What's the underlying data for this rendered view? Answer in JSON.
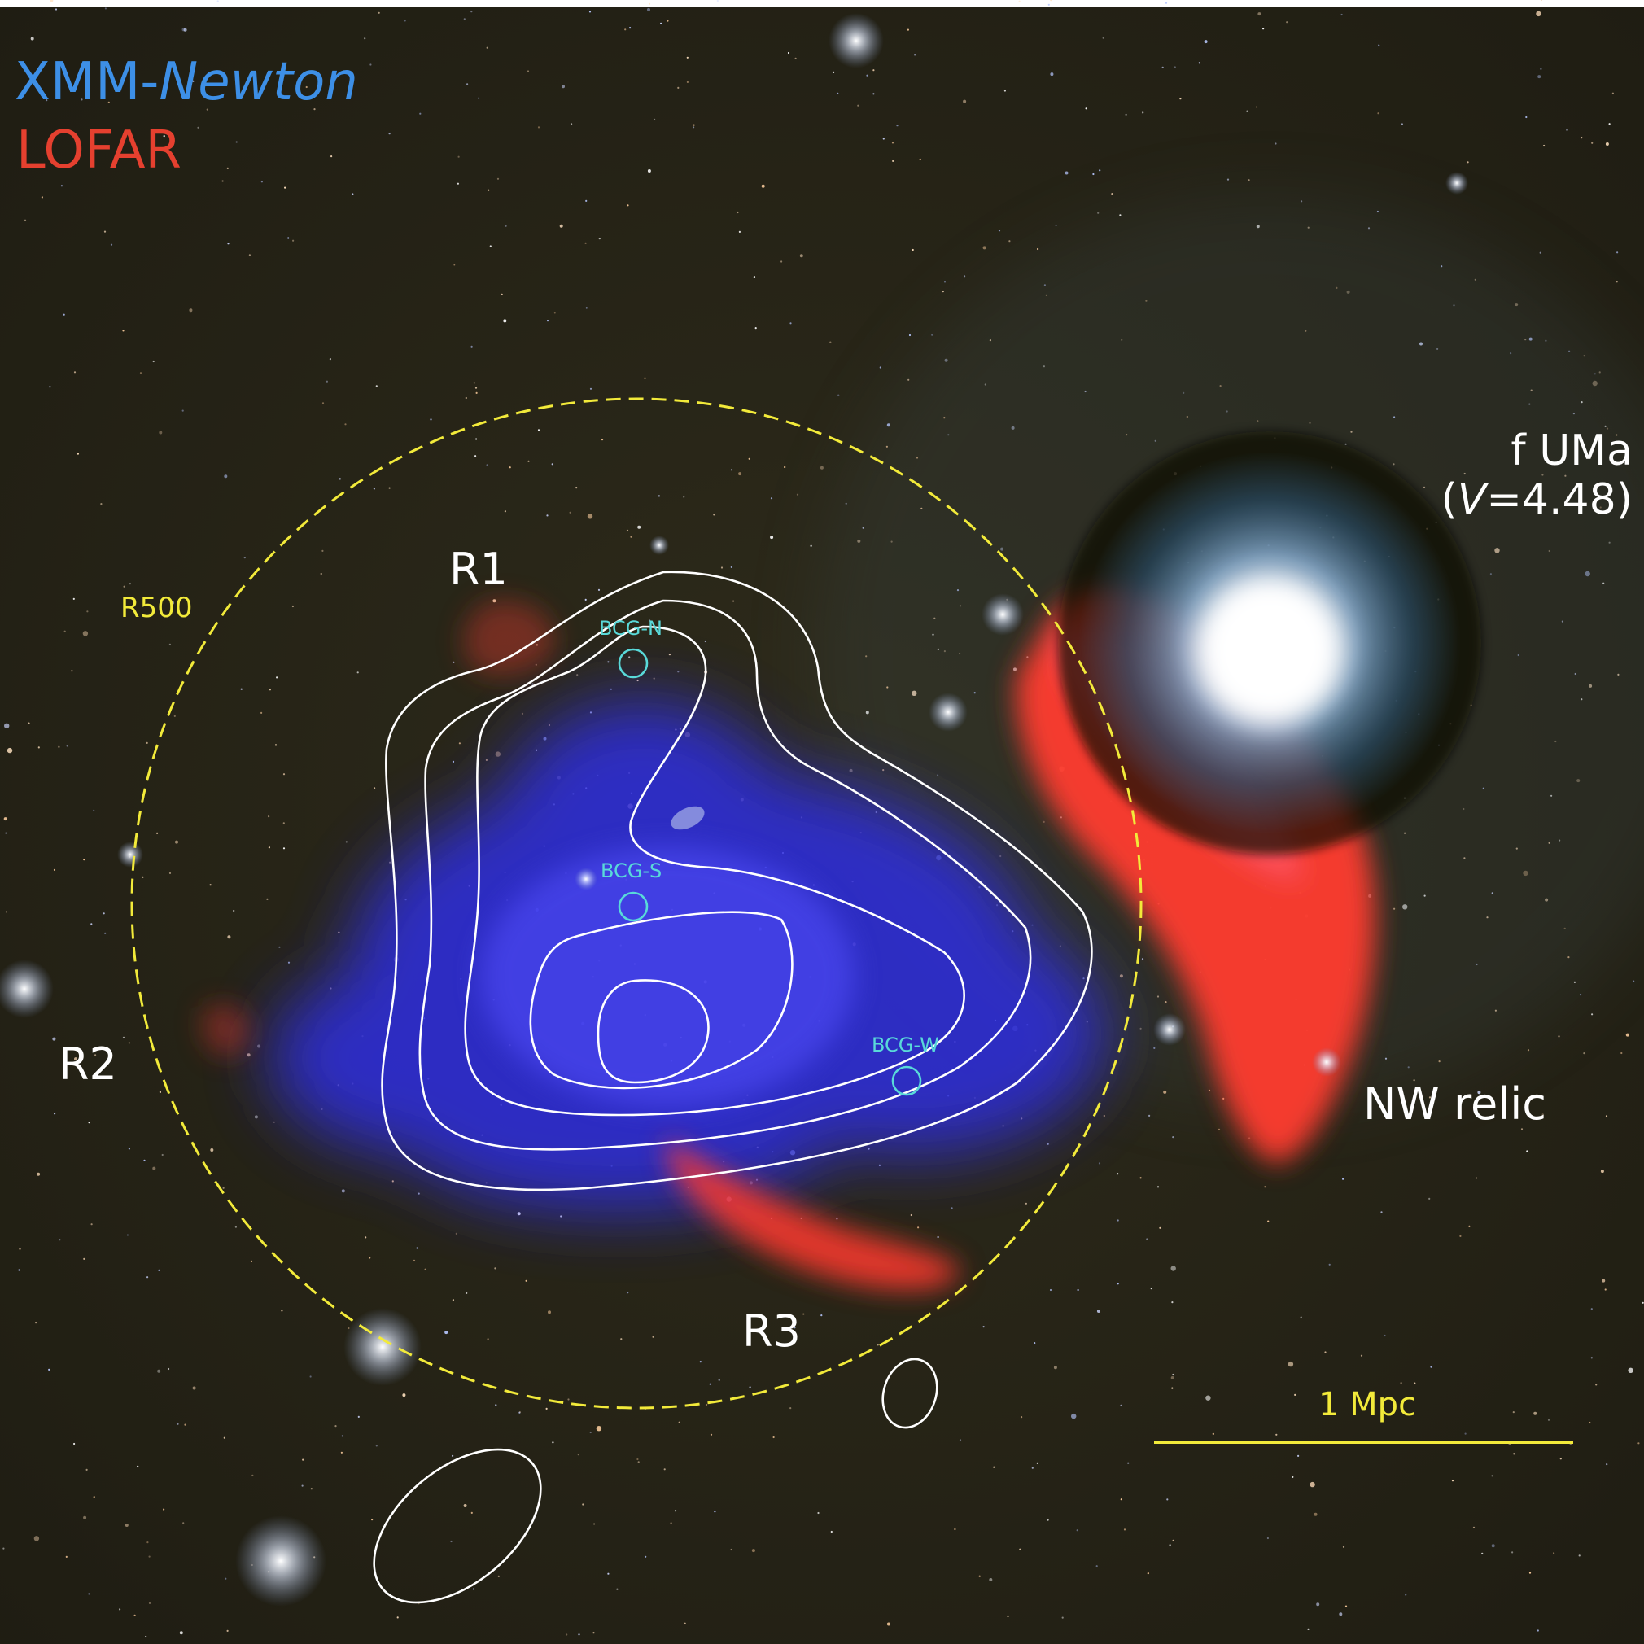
{
  "legend": {
    "xmm_prefix": "XMM-",
    "xmm_italic": "Newton",
    "lofar": "LOFAR"
  },
  "labels": {
    "r500": "R500",
    "r1": "R1",
    "r2": "R2",
    "r3": "R3",
    "bcg_n": "BCG-N",
    "bcg_s": "BCG-S",
    "bcg_w": "BCG-W",
    "star_name": "f UMa",
    "star_mag_open": "(",
    "star_mag_italic": "V",
    "star_mag_value": "=4.48)",
    "nw_relic": "NW relic",
    "scale_bar": "1 Mpc"
  },
  "colors": {
    "background": "#2a2718",
    "xray": "#2f2ee0",
    "radio": "#ff3b30",
    "contour": "#ffffff",
    "r500_circle": "#f2ea3a",
    "bcg_marker": "#59d9d9",
    "scale_bar": "#f2ea3a"
  }
}
